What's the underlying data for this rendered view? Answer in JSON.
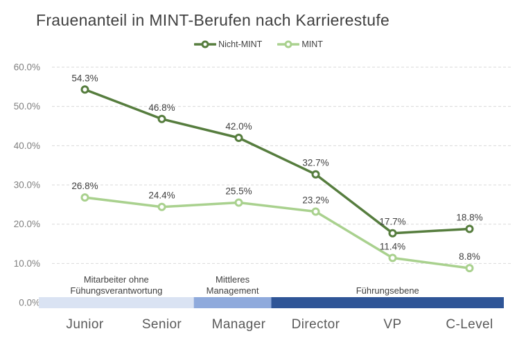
{
  "title": "Frauenanteil in MINT-Berufen nach Karrierestufe",
  "chart_data": {
    "type": "line",
    "title": "Frauenanteil in MINT-Berufen nach Karrierestufe",
    "categories": [
      "Junior",
      "Senior",
      "Manager",
      "Director",
      "VP",
      "C-Level"
    ],
    "series": [
      {
        "name": "Nicht-MINT",
        "color": "#567D3E",
        "values": [
          54.3,
          46.8,
          42.0,
          32.7,
          17.7,
          18.8
        ],
        "data_labels": [
          "54.3%",
          "46.8%",
          "42.0%",
          "32.7%",
          "17.7%",
          "18.8%"
        ]
      },
      {
        "name": "MINT",
        "color": "#A9D18E",
        "values": [
          26.8,
          24.4,
          25.5,
          23.2,
          11.4,
          8.8
        ],
        "data_labels": [
          "26.8%",
          "24.4%",
          "25.5%",
          "23.2%",
          "11.4%",
          "8.8%"
        ]
      }
    ],
    "ylim": [
      0,
      60
    ],
    "ytick_step": 10,
    "ytick_labels": [
      "0.0%",
      "10.0%",
      "20.0%",
      "30.0%",
      "40.0%",
      "50.0%",
      "60.0%"
    ],
    "grid": "horizontal-dashed",
    "legend_position": "top-center",
    "bands": [
      {
        "label": "Mitarbeiter ohne Fühungsverantwortung",
        "label_lines": [
          "Mitarbeiter ohne",
          "Fühungsverantwortung"
        ],
        "categories_span": 2,
        "color": "#DAE3F3"
      },
      {
        "label": "Mittleres Management",
        "label_lines": [
          "Mittleres",
          "Management"
        ],
        "categories_span": 1,
        "color": "#8FAADC"
      },
      {
        "label": "Führungsebene",
        "label_lines": [
          "Führungsebene"
        ],
        "categories_span": 3,
        "color": "#2F5597"
      }
    ],
    "colors": {
      "gridline": "#D9D9D9",
      "ytick_text": "#7F7F7F",
      "xtick_text": "#595959",
      "title_text": "#3F3F3F",
      "data_label_text": "#404040",
      "band_label_text": "#3F3F3F",
      "marker_fill": "#FFFFFF"
    }
  }
}
